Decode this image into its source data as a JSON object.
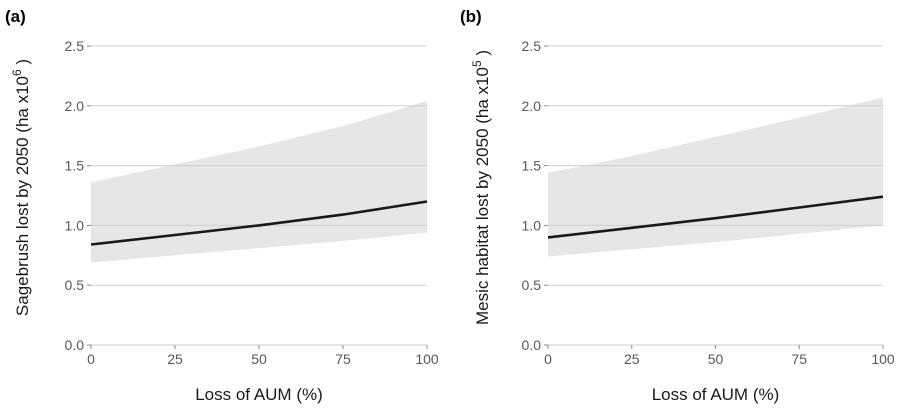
{
  "chart_data": [
    {
      "type": "area",
      "panel_label": "(a)",
      "xlabel": "Loss of AUM (%)",
      "ylabel_main": "Sagebrush lost by 2050 (ha x10",
      "ylabel_exponent": "6",
      "ylabel_end": " )",
      "xlim": [
        0,
        100
      ],
      "ylim": [
        0,
        2.5
      ],
      "xticks": [
        0,
        25,
        50,
        75,
        100
      ],
      "yticks": [
        0.0,
        0.5,
        1.0,
        1.5,
        2.0,
        2.5
      ],
      "xtick_labels": [
        "0",
        "25",
        "50",
        "75",
        "100"
      ],
      "ytick_labels": [
        "0.0",
        "0.5",
        "1.0",
        "1.5",
        "2.0",
        "2.5"
      ],
      "grid": "horizontal",
      "colors": {
        "line": "#1a1a1a",
        "band": "#e6e6e8",
        "grid": "#cfcfcf"
      },
      "x": [
        0,
        25,
        50,
        75,
        100
      ],
      "series": [
        {
          "values": [
            0.84,
            0.92,
            1.0,
            1.09,
            1.2
          ]
        },
        {
          "values": [
            0.69,
            0.75,
            0.81,
            0.87,
            0.94
          ]
        },
        {
          "values": [
            1.36,
            1.51,
            1.66,
            1.83,
            2.04
          ]
        }
      ]
    },
    {
      "type": "area",
      "panel_label": "(b)",
      "xlabel": "Loss of AUM (%)",
      "ylabel_main": "Mesic habitat lost by 2050 (ha x10",
      "ylabel_exponent": "5",
      "ylabel_end": " )",
      "xlim": [
        0,
        100
      ],
      "ylim": [
        0,
        2.5
      ],
      "xticks": [
        0,
        25,
        50,
        75,
        100
      ],
      "yticks": [
        0.0,
        0.5,
        1.0,
        1.5,
        2.0,
        2.5
      ],
      "xtick_labels": [
        "0",
        "25",
        "50",
        "75",
        "100"
      ],
      "ytick_labels": [
        "0.0",
        "0.5",
        "1.0",
        "1.5",
        "2.0",
        "2.5"
      ],
      "grid": "horizontal",
      "colors": {
        "line": "#1a1a1a",
        "band": "#e6e6e8",
        "grid": "#cfcfcf"
      },
      "x": [
        0,
        25,
        50,
        75,
        100
      ],
      "series": [
        {
          "values": [
            0.9,
            0.98,
            1.06,
            1.15,
            1.24
          ]
        },
        {
          "values": [
            0.74,
            0.8,
            0.86,
            0.93,
            1.0
          ]
        },
        {
          "values": [
            1.44,
            1.58,
            1.74,
            1.9,
            2.07
          ]
        }
      ]
    }
  ]
}
